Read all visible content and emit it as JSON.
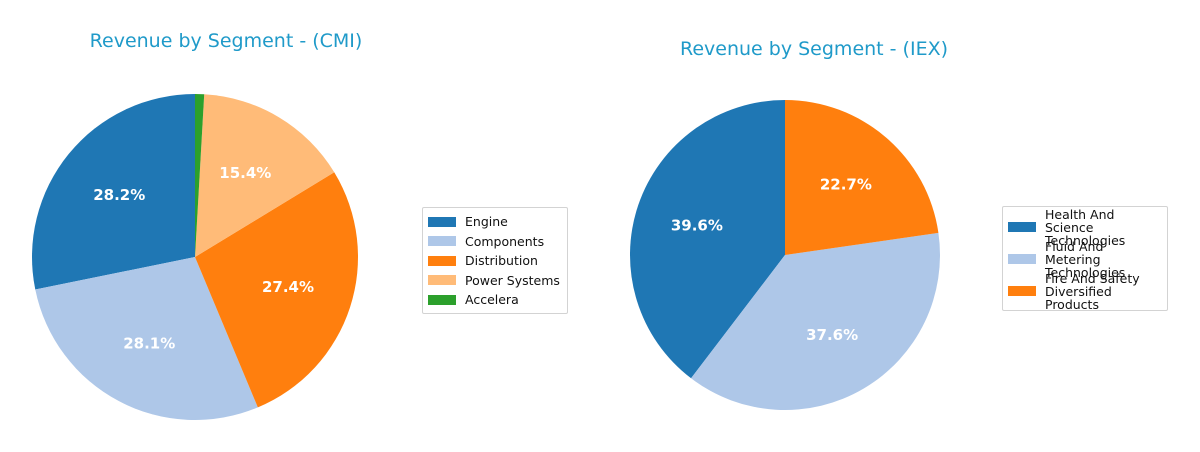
{
  "chart_data": [
    {
      "type": "pie",
      "title": "Revenue by Segment - (CMI)",
      "slices": [
        {
          "label": "Engine",
          "value": 28.2,
          "pct_label": "28.2%",
          "color": "#1f77b4"
        },
        {
          "label": "Components",
          "value": 28.1,
          "pct_label": "28.1%",
          "color": "#aec7e8"
        },
        {
          "label": "Distribution",
          "value": 27.4,
          "pct_label": "27.4%",
          "color": "#ff7f0e"
        },
        {
          "label": "Power Systems",
          "value": 15.4,
          "pct_label": "15.4%",
          "color": "#ffbb78"
        },
        {
          "label": "Accelera",
          "value": 0.9,
          "pct_label": "",
          "color": "#2ca02c"
        }
      ],
      "start_angle_deg": 90,
      "direction": "counterclockwise",
      "legend_position": "right"
    },
    {
      "type": "pie",
      "title": "Revenue by Segment - (IEX)",
      "slices": [
        {
          "label": "Health And Science\nTechnologies",
          "value": 39.6,
          "pct_label": "39.6%",
          "color": "#1f77b4"
        },
        {
          "label": "Fluid And Metering\nTechnologies",
          "value": 37.6,
          "pct_label": "37.6%",
          "color": "#aec7e8"
        },
        {
          "label": "Fire And Safety\nDiversified Products",
          "value": 22.7,
          "pct_label": "22.7%",
          "color": "#ff7f0e"
        }
      ],
      "start_angle_deg": 90,
      "direction": "counterclockwise",
      "legend_position": "right"
    }
  ]
}
